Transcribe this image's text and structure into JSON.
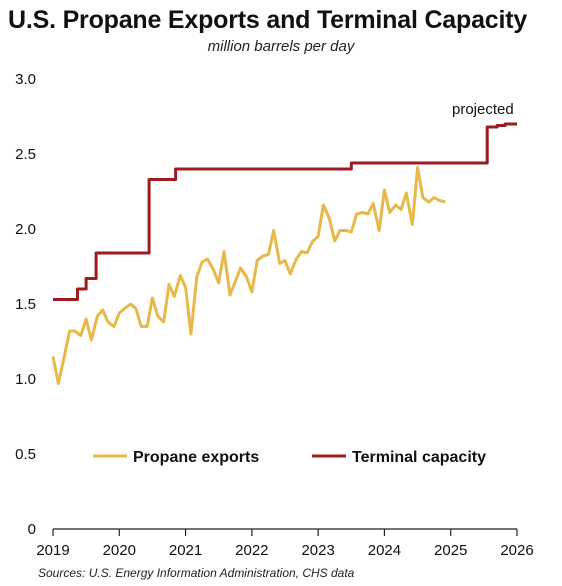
{
  "chart_data": {
    "type": "line",
    "title": "U.S. Propane Exports and Terminal Capacity",
    "subtitle": "million barrels per day",
    "source": "Sources: U.S. Energy Information Administration, CHS data",
    "annotation": "projected",
    "xlim": [
      2019,
      2026
    ],
    "ylim": [
      0,
      3.0
    ],
    "x_ticks": [
      "2019",
      "2020",
      "2021",
      "2022",
      "2023",
      "2024",
      "2025",
      "2026"
    ],
    "y_ticks": [
      "0",
      "0.5",
      "1.0",
      "1.5",
      "2.0",
      "2.5",
      "3.0"
    ],
    "legend_position": "center-left",
    "grid": false,
    "series": [
      {
        "name": "Propane exports",
        "color": "#e8b84b",
        "x": [
          2019.0,
          2019.08,
          2019.17,
          2019.25,
          2019.33,
          2019.42,
          2019.5,
          2019.58,
          2019.67,
          2019.75,
          2019.83,
          2019.92,
          2020.0,
          2020.08,
          2020.17,
          2020.25,
          2020.33,
          2020.42,
          2020.5,
          2020.58,
          2020.67,
          2020.75,
          2020.83,
          2020.92,
          2021.0,
          2021.08,
          2021.17,
          2021.25,
          2021.33,
          2021.42,
          2021.5,
          2021.58,
          2021.67,
          2021.75,
          2021.83,
          2021.92,
          2022.0,
          2022.08,
          2022.17,
          2022.25,
          2022.33,
          2022.42,
          2022.5,
          2022.58,
          2022.67,
          2022.75,
          2022.83,
          2022.92,
          2023.0,
          2023.08,
          2023.17,
          2023.25,
          2023.33,
          2023.42,
          2023.5,
          2023.58,
          2023.67,
          2023.75,
          2023.83,
          2023.92,
          2024.0,
          2024.08,
          2024.17,
          2024.25,
          2024.33,
          2024.42,
          2024.5,
          2024.58,
          2024.67,
          2024.75,
          2024.83,
          2024.92
        ],
        "values": [
          1.15,
          0.97,
          1.15,
          1.32,
          1.32,
          1.29,
          1.4,
          1.26,
          1.42,
          1.46,
          1.38,
          1.35,
          1.44,
          1.47,
          1.5,
          1.47,
          1.35,
          1.35,
          1.54,
          1.42,
          1.38,
          1.63,
          1.55,
          1.69,
          1.61,
          1.3,
          1.68,
          1.78,
          1.8,
          1.73,
          1.64,
          1.85,
          1.56,
          1.65,
          1.74,
          1.68,
          1.58,
          1.79,
          1.82,
          1.83,
          1.99,
          1.77,
          1.79,
          1.7,
          1.8,
          1.85,
          1.84,
          1.92,
          1.95,
          2.16,
          2.07,
          1.92,
          1.99,
          1.99,
          1.98,
          2.1,
          2.11,
          2.1,
          2.17,
          1.99,
          2.26,
          2.11,
          2.16,
          2.13,
          2.24,
          2.03,
          2.41,
          2.21,
          2.18,
          2.21,
          2.19,
          2.18
        ]
      },
      {
        "name": "Terminal capacity",
        "color": "#9e1b20",
        "x": [
          2019.0,
          2019.37,
          2019.37,
          2019.5,
          2019.5,
          2019.65,
          2019.65,
          2020.45,
          2020.45,
          2020.85,
          2020.85,
          2023.5,
          2023.5,
          2025.55,
          2025.55,
          2025.7,
          2025.7,
          2025.82,
          2025.82,
          2026.0
        ],
        "values": [
          1.53,
          1.53,
          1.6,
          1.6,
          1.67,
          1.67,
          1.84,
          1.84,
          2.33,
          2.33,
          2.4,
          2.4,
          2.44,
          2.44,
          2.68,
          2.68,
          2.69,
          2.69,
          2.7,
          2.7
        ]
      }
    ]
  }
}
